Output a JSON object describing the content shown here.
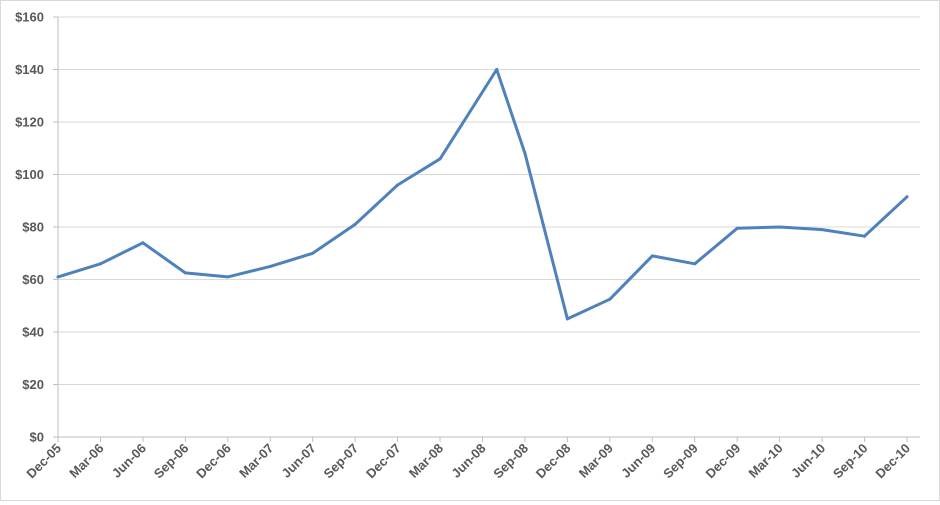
{
  "chart_data": {
    "type": "line",
    "title": "",
    "xlabel": "",
    "ylabel": "",
    "ylim": [
      0,
      160
    ],
    "grid": true,
    "legend": "none",
    "yticks": [
      0,
      20,
      40,
      60,
      80,
      100,
      120,
      140,
      160
    ],
    "ytick_labels": [
      "$0",
      "$20",
      "$40",
      "$60",
      "$80",
      "$100",
      "$120",
      "$140",
      "$160"
    ],
    "xticks": [
      "Dec-05",
      "Mar-06",
      "Jun-06",
      "Sep-06",
      "Dec-06",
      "Mar-07",
      "Jun-07",
      "Sep-07",
      "Dec-07",
      "Mar-08",
      "Jun-08",
      "Sep-08",
      "Dec-08",
      "Mar-09",
      "Jun-09",
      "Sep-09",
      "Dec-09",
      "Mar-10",
      "Jun-10",
      "Sep-10",
      "Dec-10"
    ],
    "line_color": "#4f81bd",
    "series": [
      {
        "points": [
          {
            "x": "2005-12",
            "y": 61
          },
          {
            "x": "2006-03",
            "y": 66
          },
          {
            "x": "2006-06",
            "y": 74
          },
          {
            "x": "2006-09",
            "y": 62.5
          },
          {
            "x": "2006-12",
            "y": 61
          },
          {
            "x": "2007-03",
            "y": 65
          },
          {
            "x": "2007-06",
            "y": 70
          },
          {
            "x": "2007-09",
            "y": 81
          },
          {
            "x": "2007-12",
            "y": 96
          },
          {
            "x": "2008-03",
            "y": 106
          },
          {
            "x": "2008-07",
            "y": 140
          },
          {
            "x": "2008-09",
            "y": 108
          },
          {
            "x": "2008-12",
            "y": 45
          },
          {
            "x": "2009-03",
            "y": 52.5
          },
          {
            "x": "2009-06",
            "y": 69
          },
          {
            "x": "2009-09",
            "y": 66
          },
          {
            "x": "2009-12",
            "y": 79.5
          },
          {
            "x": "2010-03",
            "y": 80
          },
          {
            "x": "2010-06",
            "y": 79
          },
          {
            "x": "2010-09",
            "y": 76.5
          },
          {
            "x": "2010-12",
            "y": 91.5
          }
        ]
      }
    ]
  }
}
